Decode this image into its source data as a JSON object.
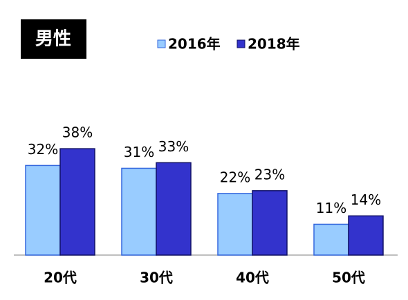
{
  "chart_data": {
    "type": "bar",
    "title": "男性",
    "categories": [
      "20代",
      "30代",
      "40代",
      "50代"
    ],
    "series": [
      {
        "name": "2016年",
        "color": "#99ccff",
        "values": [
          32,
          31,
          22,
          11
        ],
        "value_labels": [
          "32%",
          "31%",
          "22%",
          "11%"
        ]
      },
      {
        "name": "2018年",
        "color": "#3333cc",
        "values": [
          38,
          33,
          23,
          14
        ],
        "value_labels": [
          "38%",
          "33%",
          "23%",
          "14%"
        ]
      }
    ],
    "ylim": [
      0,
      40
    ]
  }
}
